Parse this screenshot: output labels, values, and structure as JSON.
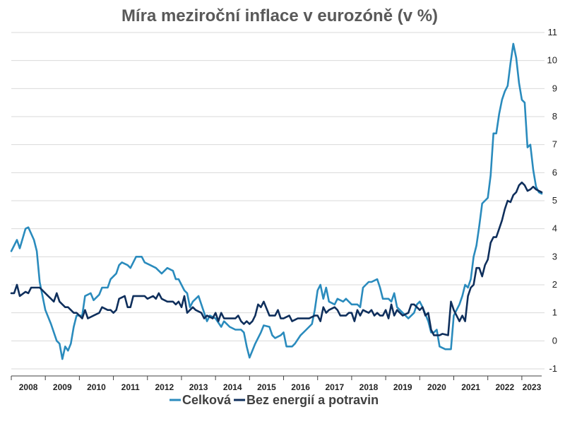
{
  "chart_data": {
    "type": "line",
    "title": "Míra meziroční inflace v eurozóně (v %)",
    "xlabel": "",
    "ylabel": "",
    "ylim": [
      -1,
      11
    ],
    "yticks": [
      "11",
      "10",
      "9",
      "8",
      "7",
      "6",
      "5",
      "4",
      "3",
      "2",
      "1",
      "0",
      "-1"
    ],
    "y_axis_side": "right",
    "grid": true,
    "legend_position": "bottom",
    "x_start": "2008-01",
    "x_end": "2023-08",
    "years": [
      "2008",
      "2009",
      "2010",
      "2011",
      "2012",
      "2013",
      "2014",
      "2015",
      "2016",
      "2017",
      "2018",
      "2019",
      "2020",
      "2021",
      "2022",
      "2023"
    ],
    "series": [
      {
        "name": "Celková",
        "color": "#2a8bbd",
        "points": [
          [
            "2008-01",
            3.2
          ],
          [
            "2008-03",
            3.6
          ],
          [
            "2008-04",
            3.3
          ],
          [
            "2008-06",
            4.0
          ],
          [
            "2008-07",
            4.05
          ],
          [
            "2008-09",
            3.6
          ],
          [
            "2008-10",
            3.2
          ],
          [
            "2008-11",
            2.1
          ],
          [
            "2008-12",
            1.6
          ],
          [
            "2009-01",
            1.1
          ],
          [
            "2009-03",
            0.6
          ],
          [
            "2009-05",
            0.0
          ],
          [
            "2009-06",
            -0.1
          ],
          [
            "2009-07",
            -0.65
          ],
          [
            "2009-08",
            -0.2
          ],
          [
            "2009-09",
            -0.35
          ],
          [
            "2009-10",
            -0.1
          ],
          [
            "2009-11",
            0.5
          ],
          [
            "2009-12",
            0.9
          ],
          [
            "2010-02",
            0.9
          ],
          [
            "2010-03",
            1.6
          ],
          [
            "2010-05",
            1.7
          ],
          [
            "2010-06",
            1.45
          ],
          [
            "2010-08",
            1.65
          ],
          [
            "2010-09",
            1.9
          ],
          [
            "2010-11",
            1.9
          ],
          [
            "2010-12",
            2.2
          ],
          [
            "2011-02",
            2.4
          ],
          [
            "2011-03",
            2.7
          ],
          [
            "2011-04",
            2.8
          ],
          [
            "2011-06",
            2.7
          ],
          [
            "2011-07",
            2.6
          ],
          [
            "2011-09",
            3.0
          ],
          [
            "2011-11",
            3.0
          ],
          [
            "2011-12",
            2.8
          ],
          [
            "2012-02",
            2.7
          ],
          [
            "2012-04",
            2.6
          ],
          [
            "2012-06",
            2.4
          ],
          [
            "2012-08",
            2.6
          ],
          [
            "2012-10",
            2.5
          ],
          [
            "2012-11",
            2.2
          ],
          [
            "2012-12",
            2.2
          ],
          [
            "2013-02",
            1.8
          ],
          [
            "2013-03",
            1.7
          ],
          [
            "2013-04",
            1.2
          ],
          [
            "2013-05",
            1.4
          ],
          [
            "2013-07",
            1.6
          ],
          [
            "2013-08",
            1.3
          ],
          [
            "2013-10",
            0.7
          ],
          [
            "2013-11",
            0.9
          ],
          [
            "2014-01",
            0.8
          ],
          [
            "2014-03",
            0.5
          ],
          [
            "2014-04",
            0.7
          ],
          [
            "2014-06",
            0.5
          ],
          [
            "2014-08",
            0.4
          ],
          [
            "2014-10",
            0.4
          ],
          [
            "2014-11",
            0.3
          ],
          [
            "2014-12",
            -0.2
          ],
          [
            "2015-01",
            -0.6
          ],
          [
            "2015-03",
            -0.1
          ],
          [
            "2015-05",
            0.3
          ],
          [
            "2015-06",
            0.55
          ],
          [
            "2015-08",
            0.5
          ],
          [
            "2015-09",
            0.2
          ],
          [
            "2015-10",
            0.1
          ],
          [
            "2015-12",
            0.2
          ],
          [
            "2016-01",
            0.3
          ],
          [
            "2016-02",
            -0.2
          ],
          [
            "2016-04",
            -0.2
          ],
          [
            "2016-05",
            -0.1
          ],
          [
            "2016-07",
            0.2
          ],
          [
            "2016-09",
            0.4
          ],
          [
            "2016-11",
            0.6
          ],
          [
            "2016-12",
            1.1
          ],
          [
            "2017-01",
            1.8
          ],
          [
            "2017-02",
            2.0
          ],
          [
            "2017-03",
            1.5
          ],
          [
            "2017-04",
            1.9
          ],
          [
            "2017-05",
            1.4
          ],
          [
            "2017-07",
            1.3
          ],
          [
            "2017-08",
            1.5
          ],
          [
            "2017-10",
            1.4
          ],
          [
            "2017-11",
            1.5
          ],
          [
            "2017-12",
            1.4
          ],
          [
            "2018-01",
            1.3
          ],
          [
            "2018-03",
            1.3
          ],
          [
            "2018-04",
            1.2
          ],
          [
            "2018-05",
            1.9
          ],
          [
            "2018-07",
            2.1
          ],
          [
            "2018-08",
            2.1
          ],
          [
            "2018-10",
            2.2
          ],
          [
            "2018-11",
            1.9
          ],
          [
            "2018-12",
            1.5
          ],
          [
            "2019-02",
            1.5
          ],
          [
            "2019-03",
            1.4
          ],
          [
            "2019-04",
            1.7
          ],
          [
            "2019-05",
            1.2
          ],
          [
            "2019-07",
            1.0
          ],
          [
            "2019-09",
            0.8
          ],
          [
            "2019-11",
            1.0
          ],
          [
            "2019-12",
            1.3
          ],
          [
            "2020-01",
            1.4
          ],
          [
            "2020-02",
            1.2
          ],
          [
            "2020-04",
            0.7
          ],
          [
            "2020-05",
            0.3
          ],
          [
            "2020-06",
            0.3
          ],
          [
            "2020-07",
            0.4
          ],
          [
            "2020-08",
            -0.2
          ],
          [
            "2020-10",
            -0.3
          ],
          [
            "2020-12",
            -0.3
          ],
          [
            "2021-01",
            0.9
          ],
          [
            "2021-03",
            1.3
          ],
          [
            "2021-04",
            1.6
          ],
          [
            "2021-05",
            2.0
          ],
          [
            "2021-06",
            1.9
          ],
          [
            "2021-07",
            2.2
          ],
          [
            "2021-08",
            3.0
          ],
          [
            "2021-09",
            3.4
          ],
          [
            "2021-10",
            4.1
          ],
          [
            "2021-11",
            4.9
          ],
          [
            "2021-12",
            5.0
          ],
          [
            "2022-01",
            5.1
          ],
          [
            "2022-02",
            5.9
          ],
          [
            "2022-03",
            7.4
          ],
          [
            "2022-04",
            7.4
          ],
          [
            "2022-05",
            8.1
          ],
          [
            "2022-06",
            8.6
          ],
          [
            "2022-07",
            8.9
          ],
          [
            "2022-08",
            9.1
          ],
          [
            "2022-09",
            9.9
          ],
          [
            "2022-10",
            10.6
          ],
          [
            "2022-11",
            10.1
          ],
          [
            "2022-12",
            9.2
          ],
          [
            "2023-01",
            8.6
          ],
          [
            "2023-02",
            8.5
          ],
          [
            "2023-03",
            6.9
          ],
          [
            "2023-04",
            7.0
          ],
          [
            "2023-05",
            6.1
          ],
          [
            "2023-06",
            5.5
          ],
          [
            "2023-07",
            5.3
          ],
          [
            "2023-08",
            5.25
          ]
        ]
      },
      {
        "name": "Bez energií a potravin",
        "color": "#0f2f5c",
        "points": [
          [
            "2008-01",
            1.7
          ],
          [
            "2008-02",
            1.7
          ],
          [
            "2008-03",
            2.0
          ],
          [
            "2008-04",
            1.6
          ],
          [
            "2008-06",
            1.75
          ],
          [
            "2008-07",
            1.7
          ],
          [
            "2008-08",
            1.9
          ],
          [
            "2008-10",
            1.9
          ],
          [
            "2008-11",
            1.9
          ],
          [
            "2008-12",
            1.8
          ],
          [
            "2009-02",
            1.6
          ],
          [
            "2009-03",
            1.5
          ],
          [
            "2009-04",
            1.4
          ],
          [
            "2009-05",
            1.7
          ],
          [
            "2009-06",
            1.4
          ],
          [
            "2009-08",
            1.2
          ],
          [
            "2009-09",
            1.2
          ],
          [
            "2009-11",
            1.0
          ],
          [
            "2009-12",
            1.0
          ],
          [
            "2010-01",
            0.9
          ],
          [
            "2010-02",
            0.8
          ],
          [
            "2010-03",
            1.1
          ],
          [
            "2010-04",
            0.8
          ],
          [
            "2010-06",
            0.9
          ],
          [
            "2010-08",
            1.0
          ],
          [
            "2010-09",
            1.2
          ],
          [
            "2010-11",
            1.1
          ],
          [
            "2010-12",
            1.1
          ],
          [
            "2011-01",
            1.0
          ],
          [
            "2011-02",
            1.1
          ],
          [
            "2011-03",
            1.5
          ],
          [
            "2011-05",
            1.6
          ],
          [
            "2011-06",
            1.2
          ],
          [
            "2011-07",
            1.2
          ],
          [
            "2011-08",
            1.6
          ],
          [
            "2011-10",
            1.6
          ],
          [
            "2011-12",
            1.6
          ],
          [
            "2012-01",
            1.5
          ],
          [
            "2012-03",
            1.6
          ],
          [
            "2012-04",
            1.5
          ],
          [
            "2012-05",
            1.7
          ],
          [
            "2012-06",
            1.5
          ],
          [
            "2012-08",
            1.4
          ],
          [
            "2012-10",
            1.4
          ],
          [
            "2012-11",
            1.3
          ],
          [
            "2012-12",
            1.4
          ],
          [
            "2013-01",
            1.2
          ],
          [
            "2013-02",
            1.6
          ],
          [
            "2013-03",
            1.0
          ],
          [
            "2013-05",
            1.2
          ],
          [
            "2013-06",
            1.1
          ],
          [
            "2013-08",
            1.0
          ],
          [
            "2013-09",
            0.8
          ],
          [
            "2013-10",
            0.9
          ],
          [
            "2013-12",
            0.8
          ],
          [
            "2014-01",
            1.0
          ],
          [
            "2014-02",
            0.7
          ],
          [
            "2014-03",
            1.0
          ],
          [
            "2014-04",
            0.8
          ],
          [
            "2014-06",
            0.8
          ],
          [
            "2014-08",
            0.8
          ],
          [
            "2014-09",
            0.9
          ],
          [
            "2014-10",
            0.7
          ],
          [
            "2014-11",
            0.6
          ],
          [
            "2014-12",
            0.7
          ],
          [
            "2015-01",
            0.6
          ],
          [
            "2015-02",
            0.7
          ],
          [
            "2015-03",
            0.9
          ],
          [
            "2015-04",
            1.3
          ],
          [
            "2015-05",
            1.2
          ],
          [
            "2015-06",
            1.4
          ],
          [
            "2015-08",
            0.9
          ],
          [
            "2015-10",
            0.9
          ],
          [
            "2015-11",
            1.1
          ],
          [
            "2015-12",
            0.8
          ],
          [
            "2016-01",
            0.8
          ],
          [
            "2016-03",
            0.9
          ],
          [
            "2016-04",
            0.7
          ],
          [
            "2016-06",
            0.8
          ],
          [
            "2016-08",
            0.8
          ],
          [
            "2016-10",
            0.8
          ],
          [
            "2016-12",
            0.9
          ],
          [
            "2017-01",
            0.9
          ],
          [
            "2017-02",
            0.7
          ],
          [
            "2017-03",
            1.2
          ],
          [
            "2017-04",
            1.0
          ],
          [
            "2017-05",
            1.1
          ],
          [
            "2017-07",
            1.2
          ],
          [
            "2017-08",
            1.1
          ],
          [
            "2017-09",
            0.9
          ],
          [
            "2017-11",
            0.9
          ],
          [
            "2017-12",
            1.0
          ],
          [
            "2018-01",
            1.0
          ],
          [
            "2018-02",
            0.7
          ],
          [
            "2018-03",
            1.1
          ],
          [
            "2018-04",
            0.9
          ],
          [
            "2018-05",
            1.1
          ],
          [
            "2018-07",
            1.0
          ],
          [
            "2018-08",
            1.1
          ],
          [
            "2018-09",
            0.9
          ],
          [
            "2018-10",
            1.0
          ],
          [
            "2018-11",
            0.9
          ],
          [
            "2018-12",
            0.9
          ],
          [
            "2019-01",
            1.1
          ],
          [
            "2019-02",
            0.8
          ],
          [
            "2019-03",
            1.3
          ],
          [
            "2019-04",
            0.9
          ],
          [
            "2019-05",
            1.1
          ],
          [
            "2019-07",
            0.9
          ],
          [
            "2019-09",
            1.0
          ],
          [
            "2019-10",
            1.3
          ],
          [
            "2019-11",
            1.3
          ],
          [
            "2019-12",
            1.2
          ],
          [
            "2020-01",
            1.1
          ],
          [
            "2020-02",
            1.2
          ],
          [
            "2020-03",
            0.9
          ],
          [
            "2020-04",
            1.0
          ],
          [
            "2020-05",
            0.4
          ],
          [
            "2020-06",
            0.2
          ],
          [
            "2020-08",
            0.2
          ],
          [
            "2020-09",
            0.25
          ],
          [
            "2020-11",
            0.2
          ],
          [
            "2020-12",
            1.4
          ],
          [
            "2021-01",
            1.1
          ],
          [
            "2021-03",
            0.7
          ],
          [
            "2021-04",
            0.9
          ],
          [
            "2021-05",
            0.7
          ],
          [
            "2021-06",
            1.6
          ],
          [
            "2021-07",
            1.9
          ],
          [
            "2021-08",
            2.0
          ],
          [
            "2021-09",
            2.6
          ],
          [
            "2021-10",
            2.6
          ],
          [
            "2021-11",
            2.3
          ],
          [
            "2021-12",
            2.7
          ],
          [
            "2022-01",
            2.9
          ],
          [
            "2022-02",
            3.5
          ],
          [
            "2022-03",
            3.7
          ],
          [
            "2022-04",
            3.7
          ],
          [
            "2022-05",
            4.0
          ],
          [
            "2022-06",
            4.3
          ],
          [
            "2022-07",
            4.7
          ],
          [
            "2022-08",
            5.0
          ],
          [
            "2022-09",
            4.95
          ],
          [
            "2022-10",
            5.2
          ],
          [
            "2022-11",
            5.3
          ],
          [
            "2022-12",
            5.55
          ],
          [
            "2023-01",
            5.65
          ],
          [
            "2023-02",
            5.55
          ],
          [
            "2023-03",
            5.35
          ],
          [
            "2023-04",
            5.4
          ],
          [
            "2023-05",
            5.5
          ],
          [
            "2023-06",
            5.4
          ],
          [
            "2023-07",
            5.35
          ],
          [
            "2023-08",
            5.3
          ]
        ]
      }
    ]
  }
}
